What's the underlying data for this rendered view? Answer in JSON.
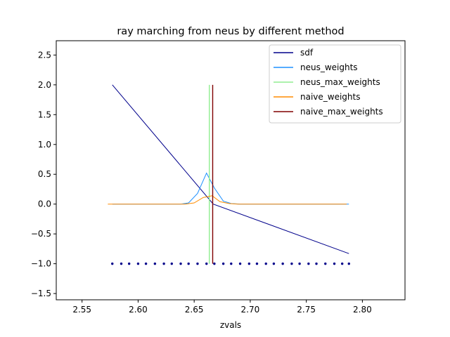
{
  "chart_data": {
    "type": "line",
    "title": "ray marching from neus by different method",
    "xlabel": "zvals",
    "ylabel": "",
    "xlim": [
      2.527,
      2.838
    ],
    "ylim": [
      -1.605,
      2.74
    ],
    "xticks": [
      2.55,
      2.6,
      2.65,
      2.7,
      2.75,
      2.8
    ],
    "xtick_labels": [
      "2.55",
      "2.60",
      "2.65",
      "2.70",
      "2.75",
      "2.80"
    ],
    "yticks": [
      -1.5,
      -1.0,
      -0.5,
      0.0,
      0.5,
      1.0,
      1.5,
      2.0,
      2.5
    ],
    "ytick_labels": [
      "−1.5",
      "−1.0",
      "−0.5",
      "0.0",
      "0.5",
      "1.0",
      "1.5",
      "2.0",
      "2.5"
    ],
    "legend_position": "top-right",
    "series": [
      {
        "name": "sdf",
        "color": "#00008b",
        "kind": "line",
        "x": [
          2.577,
          2.667,
          2.788
        ],
        "y": [
          2.0,
          0.0,
          -0.83
        ]
      },
      {
        "name": "neus_weights",
        "color": "#1e90ff",
        "kind": "line",
        "x": [
          2.577,
          2.585,
          2.592,
          2.6,
          2.607,
          2.615,
          2.623,
          2.63,
          2.638,
          2.645,
          2.653,
          2.661,
          2.668,
          2.676,
          2.683,
          2.691,
          2.699,
          2.706,
          2.714,
          2.721,
          2.729,
          2.737,
          2.744,
          2.752,
          2.759,
          2.767,
          2.775,
          2.782,
          2.788
        ],
        "y": [
          0.0,
          0.0,
          0.0,
          0.0,
          0.0,
          0.0,
          0.0,
          0.0,
          0.0,
          0.02,
          0.18,
          0.52,
          0.27,
          0.05,
          0.01,
          0.0,
          0.0,
          0.0,
          0.0,
          0.0,
          0.0,
          0.0,
          0.0,
          0.0,
          0.0,
          0.0,
          0.0,
          0.0,
          0.0
        ]
      },
      {
        "name": "neus_max_weights",
        "color": "#90ee90",
        "kind": "vline",
        "x": 2.6635,
        "ymin": -1.0,
        "ymax": 2.0
      },
      {
        "name": "naive_weights",
        "color": "#ff8c00",
        "kind": "line",
        "x": [
          2.573,
          2.581,
          2.589,
          2.596,
          2.604,
          2.612,
          2.619,
          2.627,
          2.635,
          2.642,
          2.65,
          2.658,
          2.666,
          2.673,
          2.681,
          2.689,
          2.696,
          2.704,
          2.712,
          2.719,
          2.727,
          2.735,
          2.742,
          2.75,
          2.758,
          2.765,
          2.773,
          2.781,
          2.786
        ],
        "y": [
          0.0,
          0.0,
          0.0,
          0.0,
          0.0,
          0.0,
          0.0,
          0.0,
          0.0,
          0.0,
          0.02,
          0.11,
          0.14,
          0.04,
          0.01,
          0.0,
          0.0,
          0.0,
          0.0,
          0.0,
          0.0,
          0.0,
          0.0,
          0.0,
          0.0,
          0.0,
          0.0,
          0.0,
          0.0
        ]
      },
      {
        "name": "naive_max_weights",
        "color": "#800000",
        "kind": "vline",
        "x": 2.6665,
        "ymin": -1.0,
        "ymax": 2.0
      }
    ],
    "scatter": {
      "color": "#00008b",
      "y": -1.0,
      "x": [
        2.577,
        2.585,
        2.592,
        2.6,
        2.607,
        2.615,
        2.623,
        2.63,
        2.638,
        2.645,
        2.653,
        2.661,
        2.668,
        2.676,
        2.683,
        2.691,
        2.699,
        2.706,
        2.714,
        2.721,
        2.729,
        2.737,
        2.744,
        2.752,
        2.759,
        2.767,
        2.775,
        2.782,
        2.788
      ]
    }
  }
}
